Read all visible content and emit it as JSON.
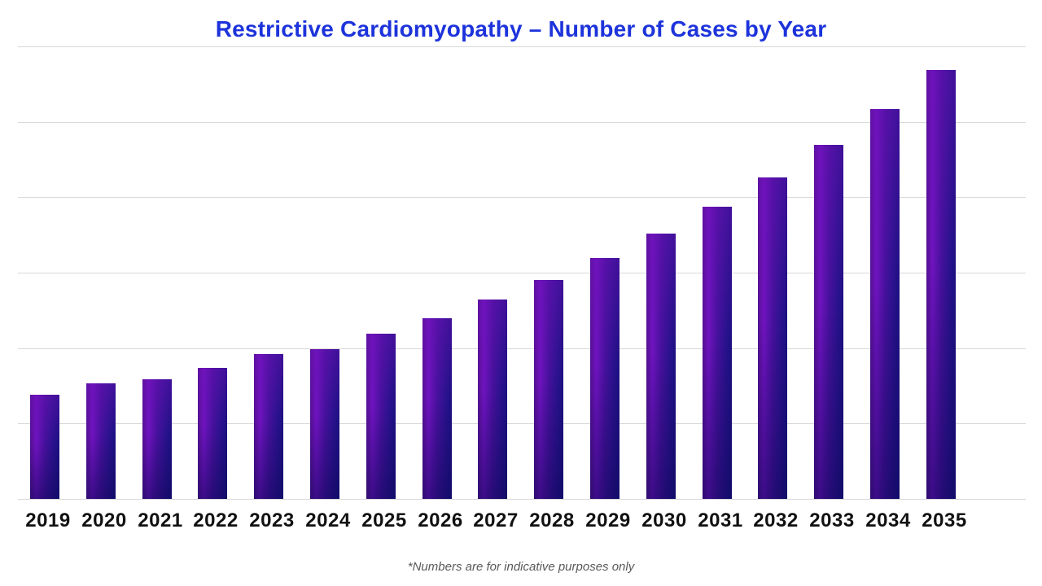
{
  "page": {
    "background": "#ffffff"
  },
  "title": {
    "text": "Restrictive Cardiomyopathy – Number of Cases by Year",
    "color": "#1d33db"
  },
  "footnote": {
    "text": "*Numbers are for indicative purposes only",
    "color": "#595959"
  },
  "chart_data": {
    "type": "bar",
    "title": "Restrictive Cardiomyopathy – Number of Cases by Year",
    "categories": [
      "2019",
      "2020",
      "2021",
      "2022",
      "2023",
      "2024",
      "2025",
      "2026",
      "2027",
      "2028",
      "2029",
      "2030",
      "2031",
      "2032",
      "2033",
      "2034",
      "2035"
    ],
    "values": [
      1.38,
      1.53,
      1.59,
      1.74,
      1.92,
      1.99,
      2.19,
      2.4,
      2.64,
      2.9,
      3.19,
      3.52,
      3.87,
      4.26,
      4.69,
      5.17,
      5.69
    ],
    "value_units": "relative gridline intervals (value axis has no visible labels)",
    "xlabel": "",
    "ylabel": "",
    "ylim": [
      0,
      6
    ],
    "grid": {
      "horizontal": true,
      "interval": 1,
      "color": "#d9d9d9",
      "lines": 7
    },
    "legend": "none",
    "bar_style": {
      "gradient": [
        "#53108f",
        "#7013c0",
        "#47119c",
        "#2b128e",
        "#1c1082"
      ],
      "top_tint": "#6d11b8",
      "bottom_shade": "#080650"
    }
  }
}
